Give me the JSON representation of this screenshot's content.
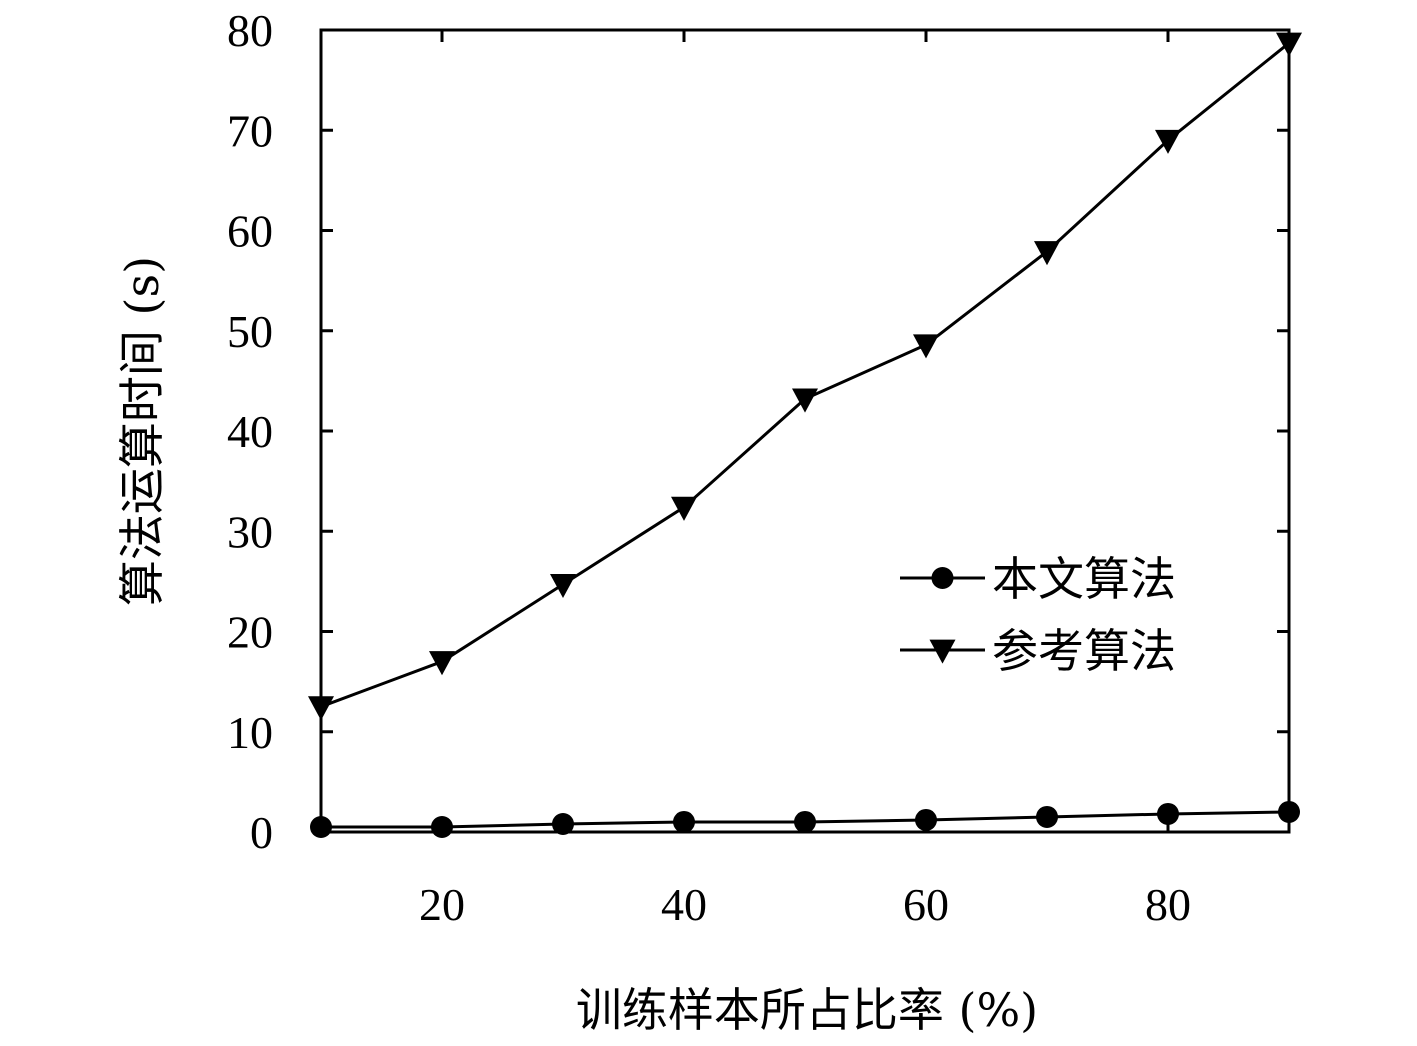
{
  "chart_data": {
    "type": "line",
    "xlabel": "训练样本所占比率 (%)",
    "ylabel": "算法运算时间 (s)",
    "xlim": [
      10,
      90
    ],
    "ylim": [
      0,
      80
    ],
    "x_ticks": [
      20,
      40,
      60,
      80
    ],
    "y_ticks": [
      0,
      10,
      20,
      30,
      40,
      50,
      60,
      70,
      80
    ],
    "x": [
      10,
      20,
      30,
      40,
      50,
      60,
      70,
      80,
      90
    ],
    "series": [
      {
        "name": "本文算法",
        "marker": "circle",
        "values": [
          0.5,
          0.5,
          0.8,
          1.0,
          1.0,
          1.2,
          1.5,
          1.8,
          2.0
        ]
      },
      {
        "name": "参考算法",
        "marker": "triangle-down",
        "values": [
          12.5,
          17.0,
          24.7,
          32.4,
          43.2,
          48.6,
          57.9,
          69.0,
          78.7
        ]
      }
    ],
    "legend_position": "right-middle",
    "grid": false,
    "colors": {
      "line": "#000000",
      "background": "#ffffff"
    }
  }
}
